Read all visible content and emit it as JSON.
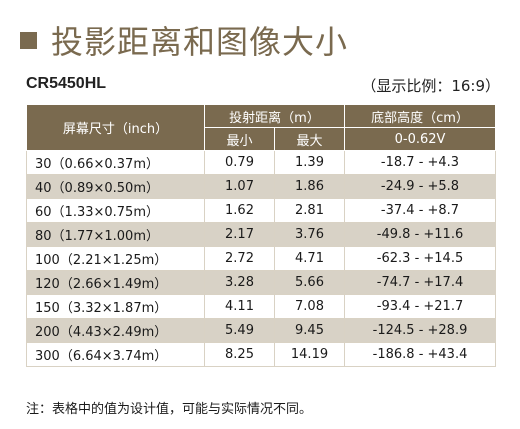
{
  "title": "投影距离和图像大小",
  "model": "CR5450HL",
  "ratio_note": "（显示比例：16:9）",
  "table": {
    "head_size": "屏幕尺寸（inch）",
    "head_distance": "投射距离（m）",
    "head_min": "最小",
    "head_max": "最大",
    "head_height": "底部高度（cm）",
    "head_height_sub": "0-0.62V",
    "rows": [
      {
        "size": "30（0.66×0.37m）",
        "min": "0.79",
        "max": "1.39",
        "height": "-18.7 - +4.3"
      },
      {
        "size": "40（0.89×0.50m）",
        "min": "1.07",
        "max": "1.86",
        "height": "-24.9 - +5.8"
      },
      {
        "size": "60（1.33×0.75m）",
        "min": "1.62",
        "max": "2.81",
        "height": "-37.4 - +8.7"
      },
      {
        "size": "80（1.77×1.00m）",
        "min": "2.17",
        "max": "3.76",
        "height": "-49.8 - +11.6"
      },
      {
        "size": "100（2.21×1.25m）",
        "min": "2.72",
        "max": "4.71",
        "height": "-62.3 - +14.5"
      },
      {
        "size": "120（2.66×1.49m）",
        "min": "3.28",
        "max": "5.66",
        "height": "-74.7 - +17.4"
      },
      {
        "size": "150（3.32×1.87m）",
        "min": "4.11",
        "max": "7.08",
        "height": "-93.4 - +21.7"
      },
      {
        "size": "200（4.43×2.49m）",
        "min": "5.49",
        "max": "9.45",
        "height": "-124.5 - +28.9"
      },
      {
        "size": "300（6.64×3.74m）",
        "min": "8.25",
        "max": "14.19",
        "height": "-186.8 - +43.4"
      }
    ]
  },
  "note": "注：表格中的值为设计值，可能与实际情况不同。",
  "colors": {
    "accent": "#7a6a4f",
    "stripe": "#d8d2c6"
  }
}
